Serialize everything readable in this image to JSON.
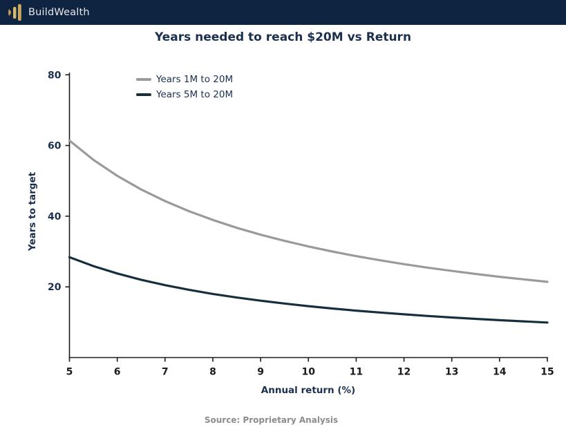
{
  "header": {
    "brand": "BuildWealth",
    "bg_color": "#0e2440",
    "logo_bar_colors": [
      "#c79e4f",
      "#d8b570",
      "#cda75c"
    ]
  },
  "title": "Years needed to reach $20M vs Return",
  "chart_data": {
    "type": "line",
    "title": "Years needed to reach $20M vs Return",
    "xlabel": "Annual return (%)",
    "ylabel": "Years to target",
    "x": [
      5,
      5.5,
      6,
      6.5,
      7,
      7.5,
      8,
      8.5,
      9,
      9.5,
      10,
      10.5,
      11,
      11.5,
      12,
      12.5,
      13,
      13.5,
      14,
      14.5,
      15
    ],
    "series": [
      {
        "name": "Years 1M to 20M",
        "color": "#9a9a9a",
        "values": [
          61.4,
          55.95,
          51.41,
          47.57,
          44.28,
          41.42,
          38.93,
          36.72,
          34.76,
          33.01,
          31.43,
          30.0,
          28.7,
          27.52,
          26.43,
          25.43,
          24.51,
          23.66,
          22.86,
          22.12,
          21.43
        ]
      },
      {
        "name": "Years 5M to 20M",
        "color": "#172e3d",
        "values": [
          28.41,
          25.89,
          23.79,
          22.01,
          20.49,
          19.17,
          18.01,
          16.99,
          16.09,
          15.28,
          14.55,
          13.88,
          13.28,
          12.74,
          12.23,
          11.77,
          11.34,
          10.95,
          10.58,
          10.24,
          9.92
        ]
      }
    ],
    "xticks": [
      5,
      6,
      7,
      8,
      9,
      10,
      11,
      12,
      13,
      14,
      15
    ],
    "yticks": [
      20,
      40,
      60,
      80
    ],
    "xlim": [
      5,
      15
    ],
    "ylim": [
      0,
      80.6
    ],
    "grid": false,
    "legend_position": "upper-left-inside"
  },
  "styles": {
    "axis_color": "#1a1a1a",
    "xtick_label_color": "#1a1a1a",
    "ytick_label_color": "#1b2f4e",
    "line_width": 3.2
  },
  "footer": {
    "source": "Source: Proprietary Analysis"
  }
}
